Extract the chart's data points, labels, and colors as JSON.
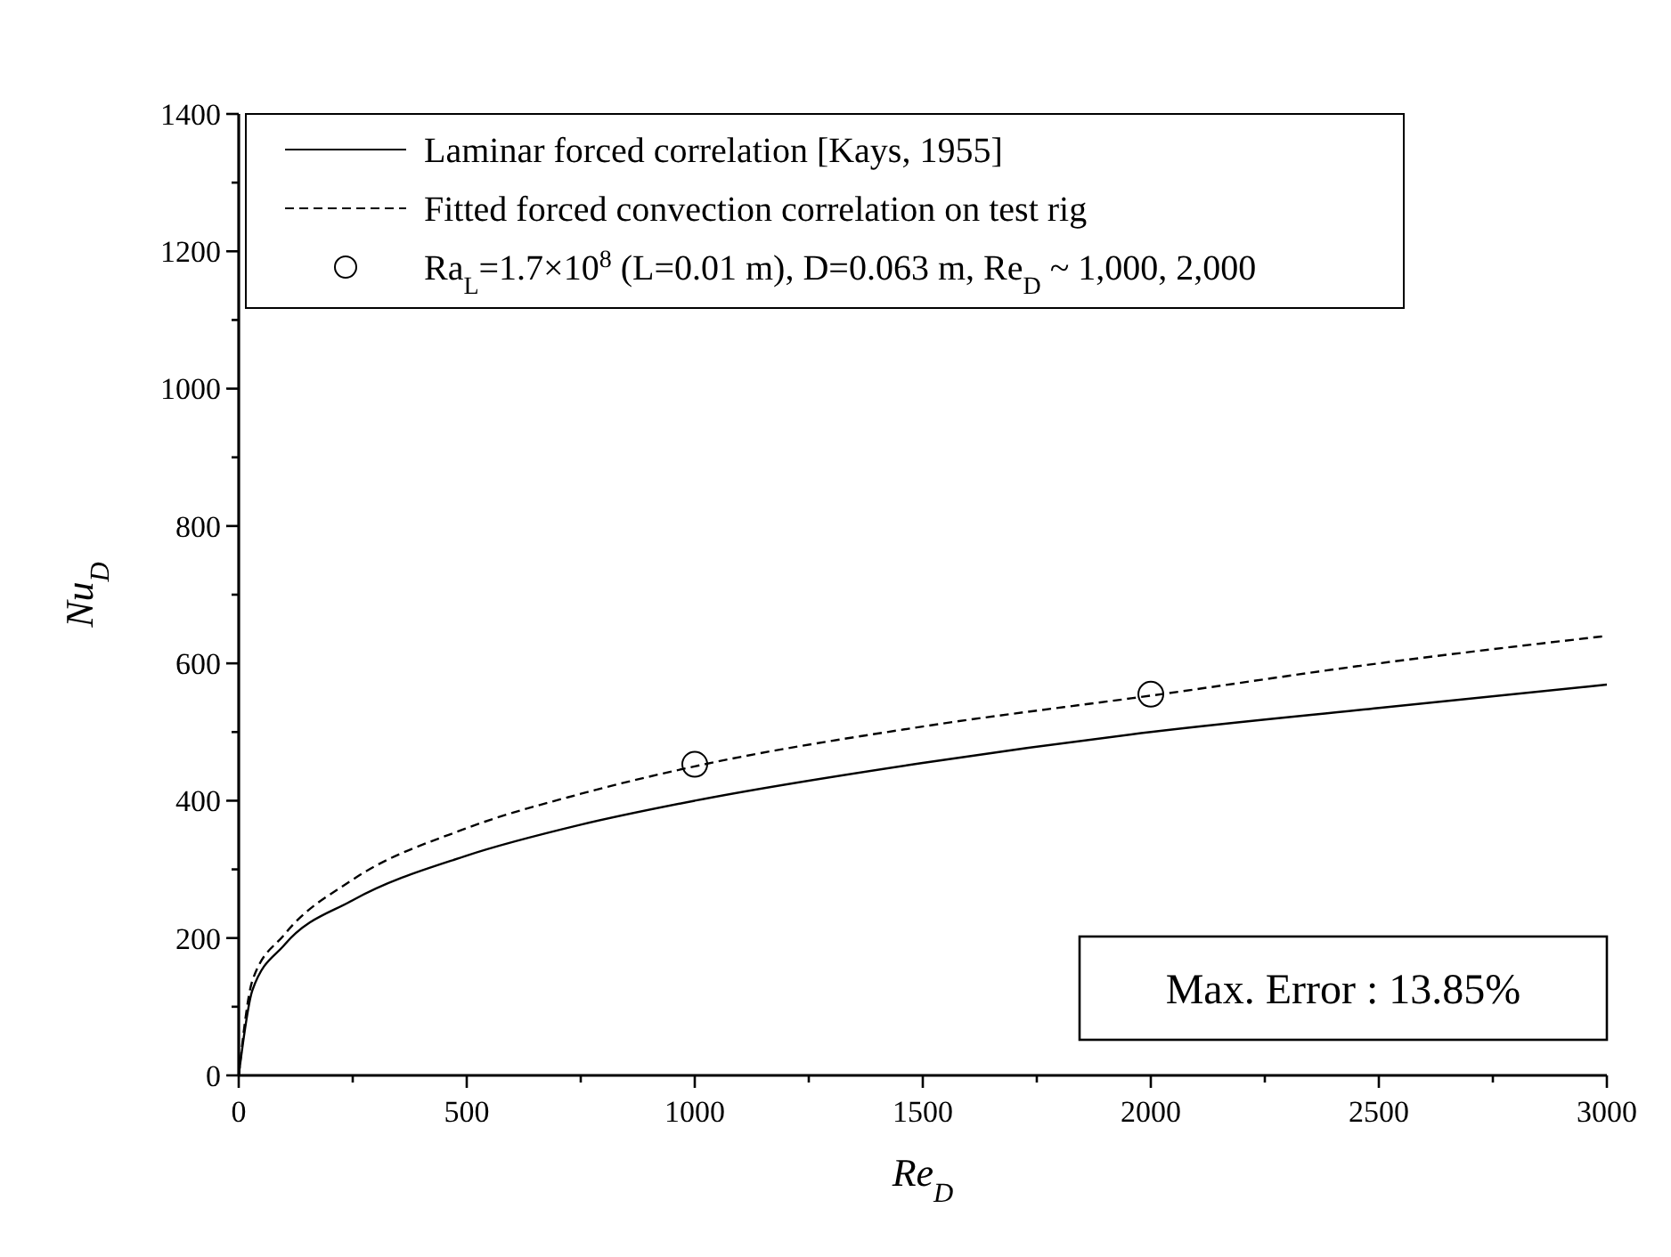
{
  "chart_data": {
    "type": "line",
    "xlabel": "Re$_{D}$",
    "ylabel": "Nu$_{D}$",
    "xlim": [
      0,
      3000
    ],
    "ylim": [
      0,
      1400
    ],
    "xticks": [
      0,
      {
        "value": 250,
        "label": null
      },
      500,
      {
        "value": 750,
        "label": null
      },
      1000,
      {
        "value": 1250,
        "label": null
      },
      1500,
      {
        "value": 1750,
        "label": null
      },
      2000,
      {
        "value": 2250,
        "label": null
      },
      2500,
      {
        "value": 2750,
        "label": null
      },
      3000
    ],
    "yticks": [
      0,
      {
        "value": 100,
        "label": null
      },
      200,
      {
        "value": 300,
        "label": null
      },
      400,
      {
        "value": 500,
        "label": null
      },
      600,
      {
        "value": 700,
        "label": null
      },
      800,
      {
        "value": 900,
        "label": null
      },
      1000,
      {
        "value": 1100,
        "label": null
      },
      1200,
      {
        "value": 1300,
        "label": null
      },
      1400
    ],
    "grid": false,
    "legend": "top left",
    "series": [
      {
        "name": "Laminar forced correlation [Kays, 1955]",
        "color": "#000000",
        "line_style": "solid",
        "marker": "none",
        "x": [
          0,
          30,
          100,
          250,
          500,
          750,
          1000,
          1500,
          2000,
          2500,
          3000
        ],
        "values": [
          0,
          124,
          190,
          255,
          320,
          365,
          400,
          455,
          500,
          535,
          569
        ]
      },
      {
        "name": "Fitted forced convection correlation on test rig",
        "color": "#000000",
        "line_style": "dashed",
        "marker": "none",
        "x": [
          0,
          30,
          100,
          250,
          500,
          750,
          1000,
          1500,
          2000,
          2500,
          3000
        ],
        "values": [
          0,
          138,
          205,
          285,
          360,
          410,
          450,
          508,
          553,
          600,
          640
        ]
      },
      {
        "name": "Ra$_{L}$=1.7×10$^{8}$ (L=0.01 m), D=0.063 m, Re$_{D}$ ~ 1,000, 2,000",
        "type": "scatter",
        "color": "#000000",
        "marker": "circle",
        "x": [
          1000,
          2000
        ],
        "values": [
          453,
          555
        ]
      }
    ],
    "annotations": [
      "Max. Error : 13.85%"
    ]
  }
}
